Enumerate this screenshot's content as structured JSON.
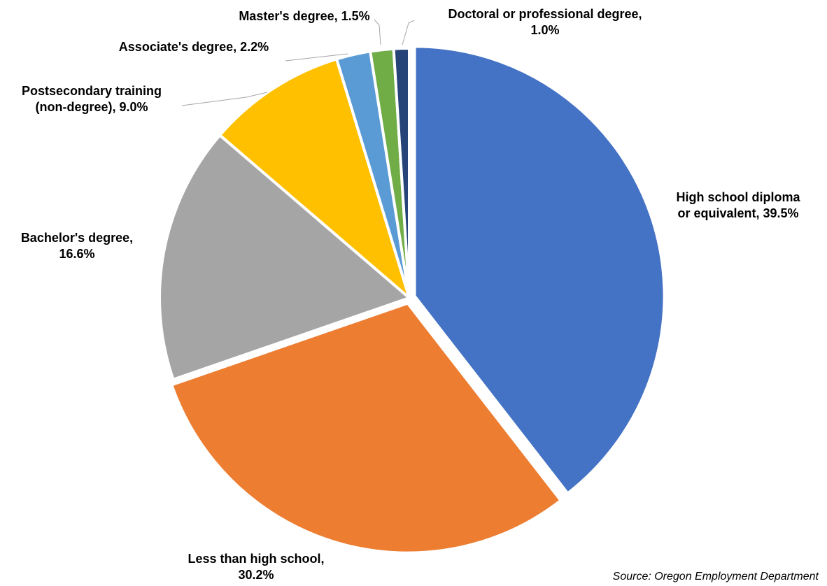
{
  "chart_data": {
    "type": "pie",
    "start_angle_deg": 0,
    "direction": "clockwise",
    "slices": [
      {
        "label_lines": [
          "High school diploma",
          "or equivalent, 39.5%"
        ],
        "value": 39.5,
        "color": "#4472c4"
      },
      {
        "label_lines": [
          "Less than high school,",
          "30.2%"
        ],
        "value": 30.2,
        "color": "#ed7d31"
      },
      {
        "label_lines": [
          "Bachelor's degree,",
          "16.6%"
        ],
        "value": 16.6,
        "color": "#a5a5a5"
      },
      {
        "label_lines": [
          "Postsecondary training",
          "(non-degree), 9.0%"
        ],
        "value": 9.0,
        "color": "#ffc000"
      },
      {
        "label_lines": [
          "Associate's degree, 2.2%"
        ],
        "value": 2.2,
        "color": "#5b9bd5"
      },
      {
        "label_lines": [
          "Master's degree, 1.5%"
        ],
        "value": 1.5,
        "color": "#70ad47"
      },
      {
        "label_lines": [
          "Doctoral or professional degree,",
          "1.0%"
        ],
        "value": 1.0,
        "color": "#264478"
      }
    ]
  },
  "source": "Source: Oregon Employment Department"
}
